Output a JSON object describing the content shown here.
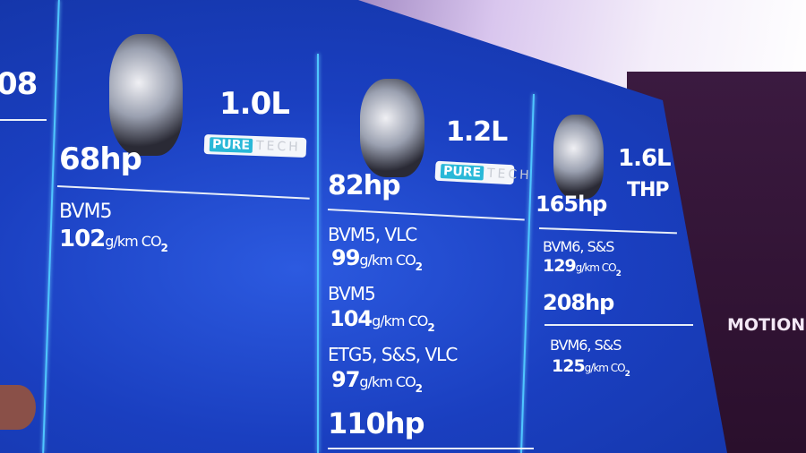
{
  "left_partial": {
    "label": "08"
  },
  "columns": [
    {
      "displacement": "1.0L",
      "logo": {
        "pure": "PURE",
        "tech": "TECH"
      },
      "power": "68hp",
      "variants": [
        {
          "gearbox": "BVM5",
          "co2_value": "102",
          "co2_unit": "g/km CO",
          "co2_sub": "2"
        }
      ]
    },
    {
      "displacement": "1.2L",
      "logo": {
        "pure": "PURE",
        "tech": "TECH"
      },
      "power": "82hp",
      "variants": [
        {
          "gearbox": "BVM5, VLC",
          "co2_value": "99",
          "co2_unit": "g/km CO",
          "co2_sub": "2"
        },
        {
          "gearbox": "BVM5",
          "co2_value": "104",
          "co2_unit": "g/km CO",
          "co2_sub": "2"
        },
        {
          "gearbox": "ETG5, S&S, VLC",
          "co2_value": "97",
          "co2_unit": "g/km CO",
          "co2_sub": "2"
        }
      ],
      "power2": "110hp"
    },
    {
      "displacement": "1.6L",
      "engine_type": "THP",
      "power": "165hp",
      "variants": [
        {
          "gearbox": "BVM6, S&S",
          "co2_value": "129",
          "co2_unit": "g/km CO",
          "co2_sub": "2"
        }
      ],
      "power2": "208hp",
      "variants2": [
        {
          "gearbox": "BVM6, S&S",
          "co2_value": "125",
          "co2_unit": "g/km CO",
          "co2_sub": "2"
        }
      ]
    }
  ],
  "side_banner": "MOTION"
}
